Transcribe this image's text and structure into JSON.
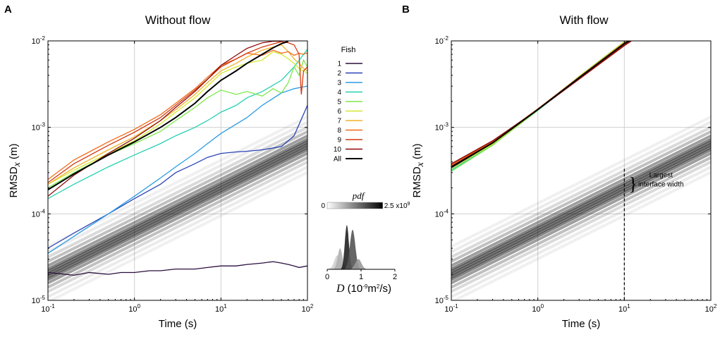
{
  "chart_data": [
    {
      "panel": "A",
      "type": "line",
      "title": "Without flow",
      "xlabel": "Time (s)",
      "ylabel_main": "RMSD",
      "ylabel_sub": "x",
      "ylabel_unit": "(m)",
      "x_scale": "log",
      "y_scale": "log",
      "xlim": [
        0.1,
        100
      ],
      "ylim": [
        1e-05,
        0.01
      ],
      "x_ticks": [
        {
          "base": "10",
          "exp": "-1"
        },
        {
          "base": "10",
          "exp": "0"
        },
        {
          "base": "10",
          "exp": "1"
        },
        {
          "base": "10",
          "exp": "2"
        }
      ],
      "y_ticks": [
        {
          "base": "10",
          "exp": "-5"
        },
        {
          "base": "10",
          "exp": "-4"
        },
        {
          "base": "10",
          "exp": "-3"
        },
        {
          "base": "10",
          "exp": "-2"
        }
      ],
      "grid": true,
      "legend": {
        "title": "Fish",
        "placement": "right",
        "entries": [
          {
            "label": "1",
            "color": "#2b0f3e"
          },
          {
            "label": "2",
            "color": "#2a44b8"
          },
          {
            "label": "3",
            "color": "#2b9be3"
          },
          {
            "label": "4",
            "color": "#25d0b0"
          },
          {
            "label": "5",
            "color": "#7ee84c"
          },
          {
            "label": "6",
            "color": "#d4e830"
          },
          {
            "label": "7",
            "color": "#f2b22a"
          },
          {
            "label": "8",
            "color": "#f06a18"
          },
          {
            "label": "9",
            "color": "#d43a10"
          },
          {
            "label": "10",
            "color": "#8e0a0a"
          },
          {
            "label": "All",
            "color": "#000000"
          }
        ]
      },
      "band": {
        "name": "diffusion pdf band",
        "center_at_x0": 2e-05,
        "slope": 0.5,
        "color": "#000000"
      },
      "series": [
        {
          "name": "1",
          "color": "#2b0f3e",
          "x": [
            0.1,
            0.2,
            0.3,
            0.5,
            0.7,
            1,
            1.5,
            2,
            3,
            5,
            7,
            10,
            15,
            20,
            30,
            40,
            50,
            60,
            70,
            80,
            100
          ],
          "y": [
            2.1e-05,
            1.95e-05,
            2.1e-05,
            2e-05,
            2.1e-05,
            2.1e-05,
            2.2e-05,
            2.2e-05,
            2.3e-05,
            2.3e-05,
            2.4e-05,
            2.5e-05,
            2.5e-05,
            2.6e-05,
            2.7e-05,
            2.8e-05,
            2.7e-05,
            2.6e-05,
            2.5e-05,
            2.4e-05,
            2.5e-05
          ]
        },
        {
          "name": "2",
          "color": "#2a44b8",
          "x": [
            0.1,
            0.2,
            0.5,
            1,
            2,
            3,
            5,
            7,
            10,
            15,
            20,
            30,
            50,
            70,
            100
          ],
          "y": [
            4e-05,
            6e-05,
            0.0001,
            0.00015,
            0.00022,
            0.0003,
            0.00038,
            0.00045,
            0.0005,
            0.00052,
            0.00053,
            0.00055,
            0.0006,
            0.0008,
            0.0018
          ]
        },
        {
          "name": "3",
          "color": "#2b9be3",
          "x": [
            0.1,
            0.2,
            0.5,
            1,
            2,
            3,
            5,
            7,
            10,
            20,
            30,
            50,
            70,
            100
          ],
          "y": [
            3.5e-05,
            5.5e-05,
            0.0001,
            0.00016,
            0.00026,
            0.00035,
            0.0005,
            0.00065,
            0.00085,
            0.0013,
            0.0018,
            0.0025,
            0.0028,
            0.003
          ]
        },
        {
          "name": "4",
          "color": "#25d0b0",
          "x": [
            0.1,
            0.2,
            0.5,
            1,
            2,
            3,
            5,
            7,
            10,
            15,
            20,
            30,
            50,
            70,
            100
          ],
          "y": [
            0.00015,
            0.00022,
            0.00035,
            0.00048,
            0.00065,
            0.0008,
            0.001,
            0.0012,
            0.0015,
            0.0018,
            0.0022,
            0.0026,
            0.0035,
            0.005,
            0.008
          ]
        },
        {
          "name": "5",
          "color": "#7ee84c",
          "x": [
            0.1,
            0.2,
            0.5,
            1,
            2,
            3,
            5,
            7,
            10,
            15,
            20,
            30,
            40,
            50,
            60,
            70,
            80,
            90,
            100
          ],
          "y": [
            0.0002,
            0.0003,
            0.00048,
            0.00065,
            0.0009,
            0.0012,
            0.0017,
            0.0022,
            0.0027,
            0.0024,
            0.0026,
            0.0023,
            0.0028,
            0.0025,
            0.0033,
            0.005,
            0.004,
            0.006,
            0.005
          ]
        },
        {
          "name": "6",
          "color": "#d4e830",
          "x": [
            0.1,
            0.2,
            0.5,
            1,
            2,
            3,
            5,
            7,
            10,
            15,
            20,
            30,
            40,
            50,
            60,
            70,
            80,
            90,
            100
          ],
          "y": [
            0.00022,
            0.00032,
            0.0005,
            0.0007,
            0.0011,
            0.0015,
            0.0022,
            0.003,
            0.0042,
            0.005,
            0.0055,
            0.006,
            0.0075,
            0.007,
            0.0062,
            0.0055,
            0.0048,
            0.0045,
            0.0042
          ]
        },
        {
          "name": "7",
          "color": "#f2b22a",
          "x": [
            0.1,
            0.2,
            0.5,
            1,
            2,
            3,
            5,
            7,
            10,
            15,
            20,
            30,
            40,
            50,
            60,
            70,
            80,
            90,
            100
          ],
          "y": [
            0.00022,
            0.00034,
            0.00055,
            0.00078,
            0.0012,
            0.0016,
            0.0024,
            0.0033,
            0.0045,
            0.0055,
            0.0065,
            0.0078,
            0.0085,
            0.009,
            0.0075,
            0.0062,
            0.0055,
            0.0048,
            0.0045
          ]
        },
        {
          "name": "8",
          "color": "#f06a18",
          "x": [
            0.1,
            0.2,
            0.5,
            1,
            2,
            3,
            5,
            7,
            10,
            15,
            20,
            30,
            40,
            50,
            60,
            70,
            80,
            90,
            100
          ],
          "y": [
            0.00025,
            0.00042,
            0.00068,
            0.00095,
            0.0014,
            0.0019,
            0.0028,
            0.0038,
            0.0052,
            0.0062,
            0.0072,
            0.0068,
            0.0078,
            0.0072,
            0.0075,
            0.0068,
            0.0072,
            0.007,
            0.0073
          ]
        },
        {
          "name": "9",
          "color": "#d43a10",
          "x": [
            0.1,
            0.2,
            0.5,
            1,
            2,
            3,
            5,
            7,
            10,
            15,
            20,
            30,
            40,
            50,
            60,
            70,
            80,
            85,
            90,
            100
          ],
          "y": [
            0.00023,
            0.00038,
            0.00062,
            0.00088,
            0.0013,
            0.0018,
            0.0027,
            0.0036,
            0.005,
            0.0062,
            0.0072,
            0.0085,
            0.0092,
            0.0098,
            0.0095,
            0.009,
            0.007,
            0.0024,
            0.0045,
            0.005
          ]
        },
        {
          "name": "10",
          "color": "#8e0a0a",
          "x": [
            0.1,
            0.2,
            0.5,
            1,
            2,
            3,
            5,
            7,
            10,
            15,
            20,
            30,
            40,
            50
          ],
          "y": [
            0.00016,
            0.00028,
            0.0005,
            0.00075,
            0.0012,
            0.0017,
            0.0026,
            0.0036,
            0.0052,
            0.0068,
            0.0082,
            0.0095,
            0.0099,
            0.0099
          ]
        },
        {
          "name": "All",
          "color": "#000000",
          "x": [
            0.1,
            0.2,
            0.5,
            1,
            2,
            3,
            5,
            7,
            10,
            15,
            20,
            30,
            40,
            50,
            60
          ],
          "y": [
            0.00019,
            0.00029,
            0.00048,
            0.00068,
            0.001,
            0.0013,
            0.0019,
            0.0026,
            0.0035,
            0.0045,
            0.0055,
            0.007,
            0.0083,
            0.0093,
            0.0099
          ]
        }
      ]
    },
    {
      "panel": "B",
      "type": "line",
      "title": "With flow",
      "xlabel": "Time (s)",
      "ylabel_main": "RMSD",
      "ylabel_sub": "x",
      "ylabel_unit": "(m)",
      "x_scale": "log",
      "y_scale": "log",
      "xlim": [
        0.1,
        100
      ],
      "ylim": [
        1e-05,
        0.01
      ],
      "x_ticks": [
        {
          "base": "10",
          "exp": "-1"
        },
        {
          "base": "10",
          "exp": "0"
        },
        {
          "base": "10",
          "exp": "1"
        },
        {
          "base": "10",
          "exp": "2"
        }
      ],
      "y_ticks": [
        {
          "base": "10",
          "exp": "-5"
        },
        {
          "base": "10",
          "exp": "-4"
        },
        {
          "base": "10",
          "exp": "-3"
        },
        {
          "base": "10",
          "exp": "-2"
        }
      ],
      "grid": true,
      "band": {
        "name": "diffusion pdf band",
        "center_at_x0": 2e-05,
        "slope": 0.5,
        "color": "#000000"
      },
      "vline": {
        "x": 10,
        "style": "dashed"
      },
      "annotation": {
        "line1": "Largest",
        "line2": "interface width",
        "bracket": "}"
      },
      "series": [
        {
          "name": "1",
          "color": "#2b0f3e",
          "x": [
            0.1,
            0.3,
            1,
            3,
            10,
            12
          ],
          "y": [
            0.00034,
            0.00065,
            0.0016,
            0.0037,
            0.0092,
            0.0102
          ]
        },
        {
          "name": "2",
          "color": "#2a44b8",
          "x": [
            0.1,
            0.3,
            1,
            3,
            10,
            12
          ],
          "y": [
            0.00035,
            0.00066,
            0.00162,
            0.00375,
            0.0093,
            0.0103
          ]
        },
        {
          "name": "3",
          "color": "#2b9be3",
          "x": [
            0.1,
            0.3,
            1,
            3,
            10,
            12
          ],
          "y": [
            0.00033,
            0.00064,
            0.00158,
            0.0037,
            0.0094,
            0.0104
          ]
        },
        {
          "name": "4",
          "color": "#25d0b0",
          "x": [
            0.1,
            0.3,
            1,
            3,
            10,
            12
          ],
          "y": [
            0.00032,
            0.00063,
            0.00157,
            0.0038,
            0.0096,
            0.0105
          ]
        },
        {
          "name": "5",
          "color": "#7ee84c",
          "x": [
            0.1,
            0.3,
            1,
            3,
            10,
            12
          ],
          "y": [
            0.00031,
            0.00062,
            0.00158,
            0.0039,
            0.0098,
            0.0106
          ]
        },
        {
          "name": "6",
          "color": "#d4e830",
          "x": [
            0.1,
            0.3,
            1,
            3,
            10,
            12
          ],
          "y": [
            0.00033,
            0.00064,
            0.0016,
            0.0038,
            0.0097,
            0.0105
          ]
        },
        {
          "name": "7",
          "color": "#f2b22a",
          "x": [
            0.1,
            0.3,
            1,
            3,
            10,
            12
          ],
          "y": [
            0.00035,
            0.00067,
            0.00163,
            0.00385,
            0.0096,
            0.0104
          ]
        },
        {
          "name": "8",
          "color": "#f06a18",
          "x": [
            0.1,
            0.3,
            1,
            3,
            10,
            12
          ],
          "y": [
            0.00036,
            0.00068,
            0.00164,
            0.0038,
            0.0095,
            0.0104
          ]
        },
        {
          "name": "9",
          "color": "#d43a10",
          "x": [
            0.1,
            0.3,
            1,
            3,
            10,
            12
          ],
          "y": [
            0.00037,
            0.00069,
            0.00162,
            0.00365,
            0.009,
            0.0101
          ]
        },
        {
          "name": "10",
          "color": "#8e0a0a",
          "x": [
            0.1,
            0.3,
            1,
            3,
            10,
            12
          ],
          "y": [
            0.00038,
            0.0007,
            0.0016,
            0.0036,
            0.0088,
            0.0099
          ]
        },
        {
          "name": "All",
          "color": "#000000",
          "x": [
            0.1,
            0.3,
            1,
            3,
            10,
            12
          ],
          "y": [
            0.00035,
            0.00066,
            0.00161,
            0.00375,
            0.0093,
            0.0103
          ]
        }
      ]
    },
    {
      "panel": "inset",
      "type": "area",
      "pdf_label": "pdf",
      "colorbar_min": "0",
      "colorbar_max_base": "2.5 x10",
      "colorbar_max_exp": "9",
      "xlabel_var": "D",
      "xlabel_unit_pre": "(10",
      "xlabel_unit_exp": "-9",
      "xlabel_unit_mid": "m",
      "xlabel_unit_exp2": "2",
      "xlabel_unit_post": "/s)",
      "x_ticks": [
        "0",
        "1",
        "2"
      ],
      "xlim": [
        0,
        2
      ],
      "peaks": [
        {
          "center": 0.3,
          "height": 0.3,
          "width": 0.09,
          "color": "#cfcfcf"
        },
        {
          "center": 0.38,
          "height": 0.45,
          "width": 0.07,
          "color": "#b0b0b0"
        },
        {
          "center": 0.58,
          "height": 0.95,
          "width": 0.06,
          "color": "#222222"
        },
        {
          "center": 0.75,
          "height": 0.85,
          "width": 0.08,
          "color": "#555555"
        },
        {
          "center": 0.92,
          "height": 0.22,
          "width": 0.09,
          "color": "#999999"
        }
      ]
    }
  ],
  "labels": {
    "panel_a": "A",
    "panel_b": "B"
  }
}
